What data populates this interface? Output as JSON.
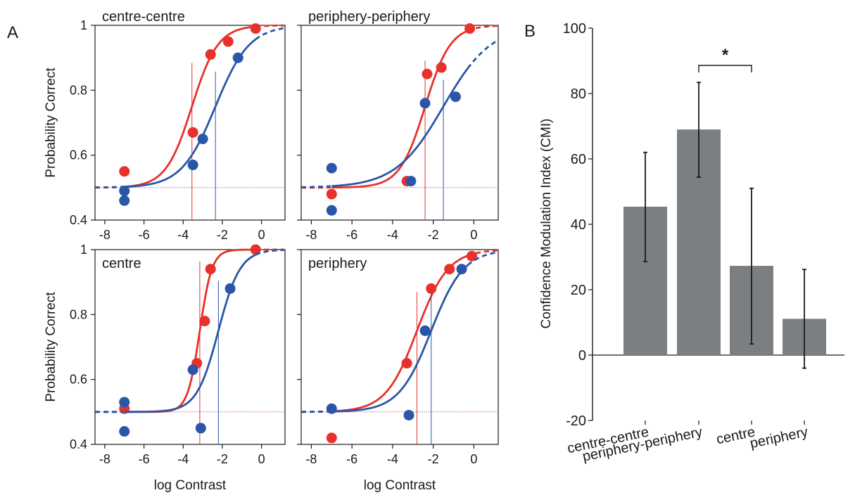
{
  "figure": {
    "panel_labels": [
      "A",
      "B"
    ]
  },
  "colors": {
    "red": "#e8312a",
    "blue": "#2a56a8",
    "bar": "#7c7f82",
    "axis": "#1a1a1a"
  },
  "chart_data": [
    {
      "type": "scatter",
      "title": "centre-centre",
      "xlabel": "",
      "ylabel": "Probability Correct",
      "xlim": [
        -8.5,
        1.2
      ],
      "ylim": [
        0.4,
        1.0
      ],
      "x_ticks": [
        -8,
        -6,
        -4,
        -2,
        0
      ],
      "y_ticks": [
        "0.4",
        "0.6",
        "0.8",
        "1"
      ],
      "series": [
        {
          "color": "red",
          "points": [
            [
              -7,
              0.55
            ],
            [
              -3.5,
              0.67
            ],
            [
              -2.6,
              0.91
            ],
            [
              -1.7,
              0.95
            ],
            [
              -0.3,
              0.99
            ]
          ],
          "fit": {
            "threshold": -3.55,
            "slope": 1.5
          }
        },
        {
          "color": "blue",
          "points": [
            [
              -7,
              0.49
            ],
            [
              -7,
              0.46
            ],
            [
              -3.5,
              0.57
            ],
            [
              -3.0,
              0.65
            ],
            [
              -1.2,
              0.9
            ]
          ],
          "fit": {
            "threshold": -2.35,
            "slope": 1.15
          }
        }
      ]
    },
    {
      "type": "scatter",
      "title": "periphery-periphery",
      "xlabel": "",
      "ylabel": "",
      "xlim": [
        -8.5,
        1.2
      ],
      "ylim": [
        0.4,
        1.0
      ],
      "x_ticks": [
        -8,
        -6,
        -4,
        -2,
        0
      ],
      "y_ticks": [],
      "series": [
        {
          "color": "red",
          "points": [
            [
              -7,
              0.48
            ],
            [
              -3.3,
              0.52
            ],
            [
              -2.3,
              0.85
            ],
            [
              -1.6,
              0.87
            ],
            [
              -0.2,
              0.99
            ]
          ],
          "fit": {
            "threshold": -2.4,
            "slope": 1.6
          }
        },
        {
          "color": "blue",
          "points": [
            [
              -7,
              0.56
            ],
            [
              -7,
              0.43
            ],
            [
              -3.1,
              0.52
            ],
            [
              -2.4,
              0.76
            ],
            [
              -0.9,
              0.78
            ]
          ],
          "fit": {
            "threshold": -1.5,
            "slope": 0.85
          }
        }
      ]
    },
    {
      "type": "scatter",
      "title": "centre",
      "xlabel": "log Contrast",
      "ylabel": "Probability Correct",
      "xlim": [
        -8.5,
        1.2
      ],
      "ylim": [
        0.4,
        1.0
      ],
      "x_ticks": [
        -8,
        -6,
        -4,
        -2,
        0
      ],
      "y_ticks": [
        "0.4",
        "0.6",
        "0.8",
        "1"
      ],
      "series": [
        {
          "color": "red",
          "points": [
            [
              -7,
              0.51
            ],
            [
              -3.3,
              0.65
            ],
            [
              -2.9,
              0.78
            ],
            [
              -2.6,
              0.94
            ],
            [
              -0.3,
              1.0
            ]
          ],
          "fit": {
            "threshold": -3.15,
            "slope": 3.2
          }
        },
        {
          "color": "blue",
          "points": [
            [
              -7,
              0.53
            ],
            [
              -7,
              0.44
            ],
            [
              -3.5,
              0.63
            ],
            [
              -3.1,
              0.45
            ],
            [
              -1.6,
              0.88
            ]
          ],
          "fit": {
            "threshold": -2.2,
            "slope": 1.8
          }
        }
      ]
    },
    {
      "type": "scatter",
      "title": "periphery",
      "xlabel": "log Contrast",
      "ylabel": "",
      "xlim": [
        -8.5,
        1.2
      ],
      "ylim": [
        0.4,
        1.0
      ],
      "x_ticks": [
        -8,
        -6,
        -4,
        -2,
        0
      ],
      "y_ticks": [],
      "series": [
        {
          "color": "red",
          "points": [
            [
              -7,
              0.42
            ],
            [
              -3.3,
              0.65
            ],
            [
              -2.1,
              0.88
            ],
            [
              -1.2,
              0.94
            ],
            [
              -0.1,
              0.98
            ]
          ],
          "fit": {
            "threshold": -2.8,
            "slope": 1.3
          }
        },
        {
          "color": "blue",
          "points": [
            [
              -7,
              0.51
            ],
            [
              -3.2,
              0.49
            ],
            [
              -2.4,
              0.75
            ],
            [
              -0.6,
              0.94
            ]
          ],
          "fit": {
            "threshold": -2.1,
            "slope": 1.25
          }
        }
      ]
    },
    {
      "type": "bar",
      "ylabel": "Confidence Modulation Index (CMI)",
      "xlabel": "",
      "ylim": [
        -20,
        100
      ],
      "y_ticks": [
        "-20",
        "0",
        "20",
        "40",
        "60",
        "80",
        "100"
      ],
      "categories": [
        "centre-centre",
        "periphery-periphery",
        "centre",
        "periphery"
      ],
      "values": [
        45.4,
        69,
        27.3,
        11.1
      ],
      "error_low": [
        28.6,
        54.4,
        3.4,
        -4
      ],
      "error_high": [
        62,
        83.4,
        51,
        26.2
      ],
      "annotation": {
        "text": "*",
        "between": [
          1,
          2
        ]
      }
    }
  ]
}
